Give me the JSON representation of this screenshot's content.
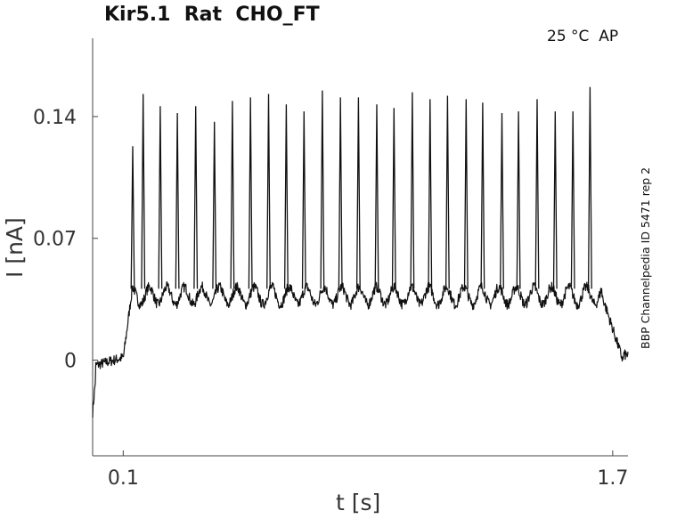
{
  "header": {
    "title": "Kir5.1  Rat  CHO_FT",
    "condition": "25 °C  AP",
    "source": "BBP Channelpedia ID 5471 rep 2"
  },
  "colors": {
    "trace": "#111111",
    "axis": "#444444",
    "text": "#222222"
  },
  "chart_data": {
    "type": "line",
    "xlabel": "t [s]",
    "ylabel": "I [nA]",
    "x_ticks": [
      0.1,
      1.7
    ],
    "x_tick_labels": [
      "0.1",
      "1.7"
    ],
    "y_ticks": [
      0,
      0.07,
      0.14
    ],
    "y_tick_labels": [
      "0",
      "0.07",
      "0.14"
    ],
    "xlim": [
      0.0,
      1.75
    ],
    "ylim": [
      -0.055,
      0.185
    ],
    "grid": false,
    "series": [
      {
        "baseline_before": 0.001,
        "step_on_s": 0.1,
        "step_off_s": 1.665,
        "plateau_level": 0.037,
        "spike_times_s": [
          0.131,
          0.165,
          0.221,
          0.277,
          0.337,
          0.398,
          0.457,
          0.516,
          0.575,
          0.633,
          0.691,
          0.751,
          0.81,
          0.869,
          0.929,
          0.985,
          1.045,
          1.103,
          1.16,
          1.221,
          1.275,
          1.338,
          1.392,
          1.453,
          1.512,
          1.57,
          1.626
        ],
        "spike_peaks_nA": [
          0.123,
          0.153,
          0.146,
          0.142,
          0.146,
          0.137,
          0.149,
          0.151,
          0.153,
          0.147,
          0.143,
          0.155,
          0.151,
          0.151,
          0.147,
          0.145,
          0.154,
          0.15,
          0.152,
          0.15,
          0.148,
          0.142,
          0.143,
          0.15,
          0.143,
          0.143,
          0.157
        ]
      }
    ]
  }
}
